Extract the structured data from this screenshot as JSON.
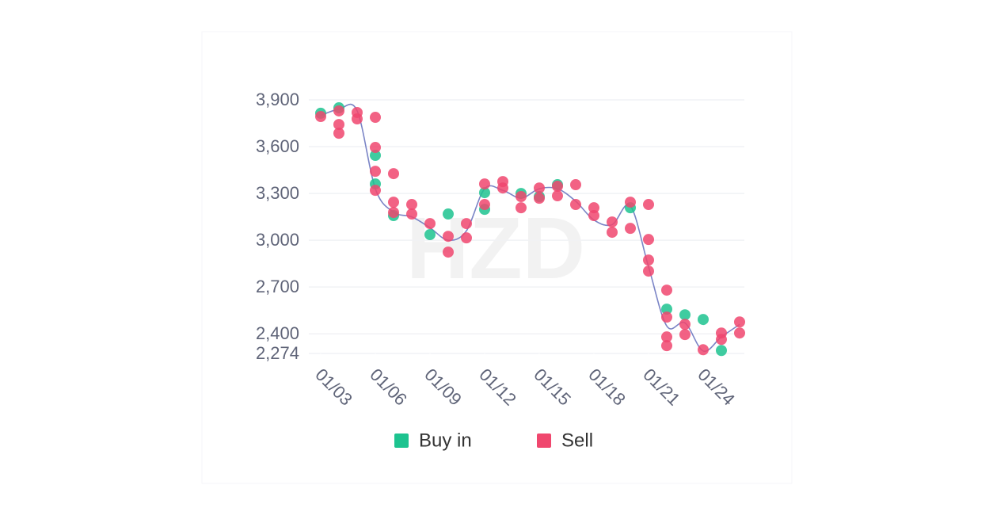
{
  "chart_data": {
    "type": "scatter",
    "watermark": "HZD",
    "xlim": [
      3,
      26
    ],
    "xticks": [
      {
        "value": 3,
        "label": "01/03"
      },
      {
        "value": 6,
        "label": "01/06"
      },
      {
        "value": 9,
        "label": "01/09"
      },
      {
        "value": 12,
        "label": "01/12"
      },
      {
        "value": 15,
        "label": "01/15"
      },
      {
        "value": 18,
        "label": "01/18"
      },
      {
        "value": 21,
        "label": "01/21"
      },
      {
        "value": 24,
        "label": "01/24"
      }
    ],
    "ylim": [
      2274,
      3900
    ],
    "yticks": [
      {
        "value": 3900,
        "label": "3,900"
      },
      {
        "value": 3600,
        "label": "3,600"
      },
      {
        "value": 3300,
        "label": "3,300"
      },
      {
        "value": 3000,
        "label": "3,000"
      },
      {
        "value": 2700,
        "label": "2,700"
      },
      {
        "value": 2400,
        "label": "2,400"
      },
      {
        "value": 2274,
        "label": "2,274"
      }
    ],
    "grid": true,
    "line": {
      "color": "#7a84c6",
      "x": [
        3,
        4,
        5,
        6,
        7,
        8,
        9,
        10,
        11,
        12,
        13,
        14,
        15,
        16,
        17,
        18,
        19,
        20,
        21,
        22,
        23,
        24,
        25,
        26
      ],
      "values": [
        3800,
        3840,
        3830,
        3330,
        3180,
        3150,
        3080,
        3000,
        3060,
        3330,
        3320,
        3270,
        3330,
        3330,
        3250,
        3130,
        3100,
        3220,
        2830,
        2450,
        2470,
        2290,
        2380,
        2460
      ]
    },
    "series": [
      {
        "name": "Buy in",
        "color": "#1dc38f",
        "x": [
          3,
          4,
          6,
          6,
          7,
          9,
          10,
          12,
          12,
          14,
          15,
          16,
          20,
          22,
          23,
          24,
          25
        ],
        "values": [
          3814,
          3849,
          3544,
          3361,
          3158,
          3036,
          3168,
          3305,
          3198,
          3300,
          3280,
          3356,
          3208,
          2558,
          2522,
          2492,
          2293
        ]
      },
      {
        "name": "Sell",
        "color": "#f0476e",
        "x": [
          3,
          4,
          4,
          4,
          5,
          5,
          6,
          6,
          6,
          6,
          7,
          7,
          7,
          8,
          8,
          9,
          10,
          10,
          11,
          11,
          12,
          12,
          13,
          13,
          14,
          14,
          15,
          15,
          16,
          16,
          17,
          17,
          18,
          18,
          19,
          19,
          20,
          20,
          21,
          21,
          21,
          21,
          22,
          22,
          22,
          22,
          23,
          23,
          24,
          25,
          25,
          26,
          26
        ],
        "values": [
          3793,
          3829,
          3742,
          3686,
          3819,
          3778,
          3788,
          3595,
          3442,
          3320,
          3427,
          3244,
          3178,
          3229,
          3168,
          3107,
          3025,
          2924,
          3107,
          3015,
          3361,
          3229,
          3376,
          3335,
          3280,
          3208,
          3335,
          3269,
          3346,
          3285,
          3356,
          3229,
          3208,
          3158,
          3117,
          3051,
          3244,
          3076,
          3229,
          3005,
          2873,
          2802,
          2680,
          2507,
          2380,
          2324,
          2461,
          2395,
          2298,
          2405,
          2364,
          2476,
          2405
        ]
      }
    ]
  }
}
